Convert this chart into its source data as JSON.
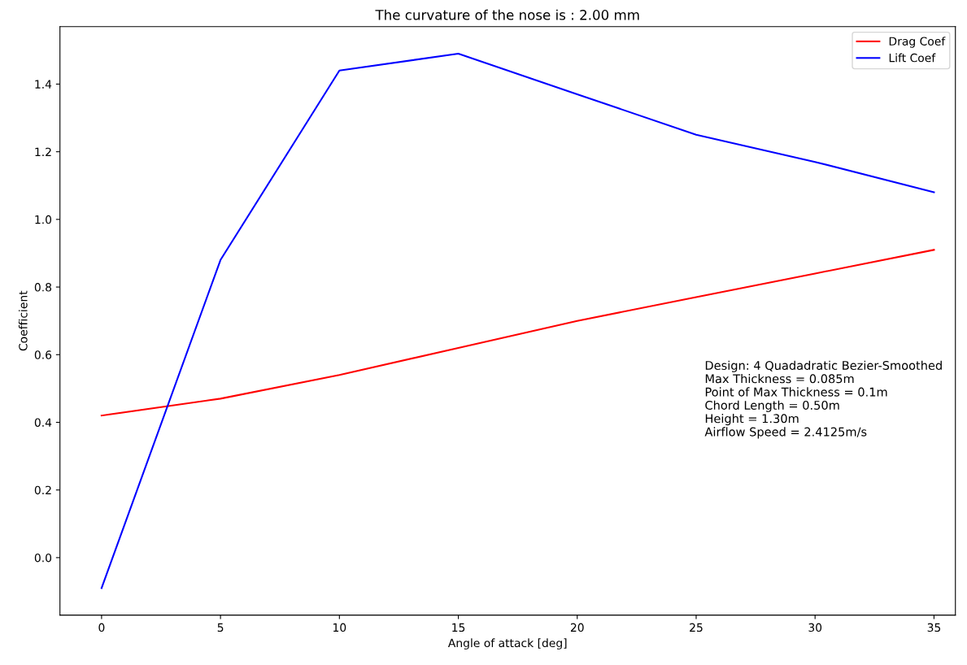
{
  "chart_data": {
    "type": "line",
    "title": "The curvature of the nose is : 2.00 mm",
    "xlabel": "Angle of attack [deg]",
    "ylabel": "Coefficient",
    "x": [
      0,
      5,
      10,
      15,
      20,
      25,
      30,
      35
    ],
    "series": [
      {
        "name": "Drag Coef",
        "color": "#ff0000",
        "values": [
          0.42,
          0.47,
          0.54,
          0.62,
          0.7,
          0.77,
          0.84,
          0.91
        ]
      },
      {
        "name": "Lift Coef",
        "color": "#0000ff",
        "values": [
          -0.09,
          0.88,
          1.44,
          1.49,
          1.37,
          1.25,
          1.17,
          1.08
        ]
      }
    ],
    "xlim": [
      -1.75,
      35.9
    ],
    "ylim": [
      -0.17,
      1.57
    ],
    "xticks": [
      0,
      5,
      10,
      15,
      20,
      25,
      30,
      35
    ],
    "yticks": [
      {
        "value": 0,
        "label": "0.0"
      },
      {
        "value": 0.2,
        "label": "0.2"
      },
      {
        "value": 0.4,
        "label": "0.4"
      },
      {
        "value": 0.6,
        "label": "0.6"
      },
      {
        "value": 0.8,
        "label": "0.8"
      },
      {
        "value": 1.0,
        "label": "1.0"
      },
      {
        "value": 1.2,
        "label": "1.2"
      },
      {
        "value": 1.4,
        "label": "1.4"
      }
    ],
    "legend": "top right",
    "grid": false,
    "marker": "none",
    "line_style": "solid",
    "annotations": [
      "Design: 4 Quadadratic Bezier-Smoothed\nMax Thickness = 0.085m\nPoint of Max Thickness = 0.1m\nChord Length = 0.50m\nHeight = 1.30m\nAirflow Speed = 2.4125m/s"
    ]
  }
}
